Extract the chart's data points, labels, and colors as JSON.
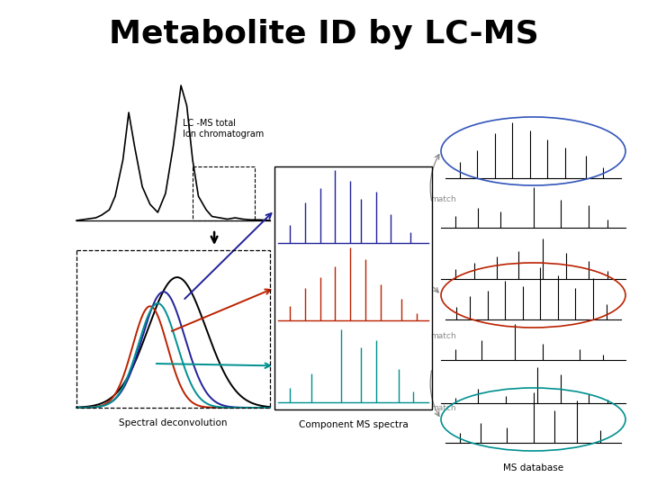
{
  "title": "Metabolite ID by LC-MS",
  "title_fontsize": 26,
  "title_fontweight": "bold",
  "bg_color": "#ffffff",
  "label_tic": "LC -MS total\nIon chromatogram",
  "label_spectral": "Spectral deconvolution",
  "label_component": "Component MS spectra",
  "label_database": "MS database",
  "label_match": "match",
  "color_blue": "#22229A",
  "color_red": "#BB2200",
  "color_teal": "#009090",
  "color_black": "#000000",
  "color_gray": "#888888",
  "color_ellipse_blue": "#3355BB",
  "color_ellipse_red": "#BB2200",
  "color_ellipse_teal": "#009090"
}
